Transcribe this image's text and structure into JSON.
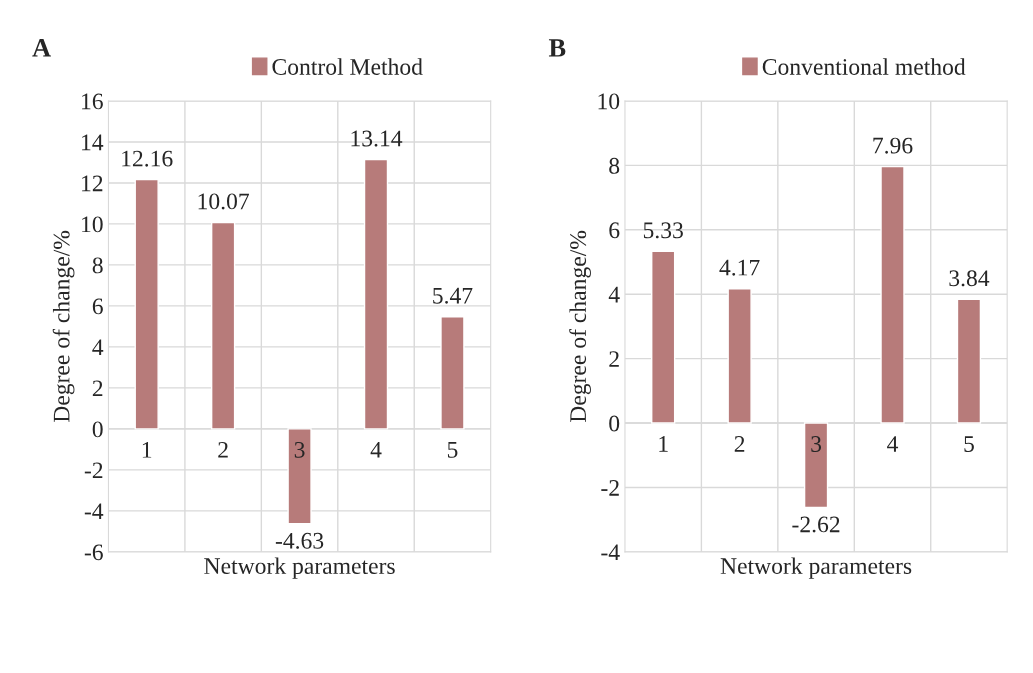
{
  "chart_data": [
    {
      "type": "bar",
      "title": "A",
      "xlabel": "Network parameters",
      "ylabel": "Degree of change/%",
      "categories": [
        "1",
        "2",
        "3",
        "4",
        "5"
      ],
      "series": [
        {
          "name": "Control Method",
          "color": "#b77b7a",
          "values": [
            12.16,
            10.07,
            -4.63,
            13.14,
            5.47
          ]
        }
      ],
      "ylim": [
        -6,
        16
      ],
      "yticks": [
        -6,
        -4,
        -2,
        0,
        2,
        4,
        6,
        8,
        10,
        12,
        14,
        16
      ],
      "grid": true,
      "legend": "top",
      "data_labels": true
    },
    {
      "type": "bar",
      "title": "B",
      "xlabel": "Network parameters",
      "ylabel": "Degree of change/%",
      "categories": [
        "1",
        "2",
        "3",
        "4",
        "5"
      ],
      "series": [
        {
          "name": "Conventional method",
          "color": "#b77b7a",
          "values": [
            5.33,
            4.17,
            -2.62,
            7.96,
            3.84
          ]
        }
      ],
      "ylim": [
        -4,
        10
      ],
      "yticks": [
        -4,
        -2,
        0,
        2,
        4,
        6,
        8,
        10
      ],
      "grid": true,
      "legend": "top",
      "data_labels": true
    }
  ]
}
